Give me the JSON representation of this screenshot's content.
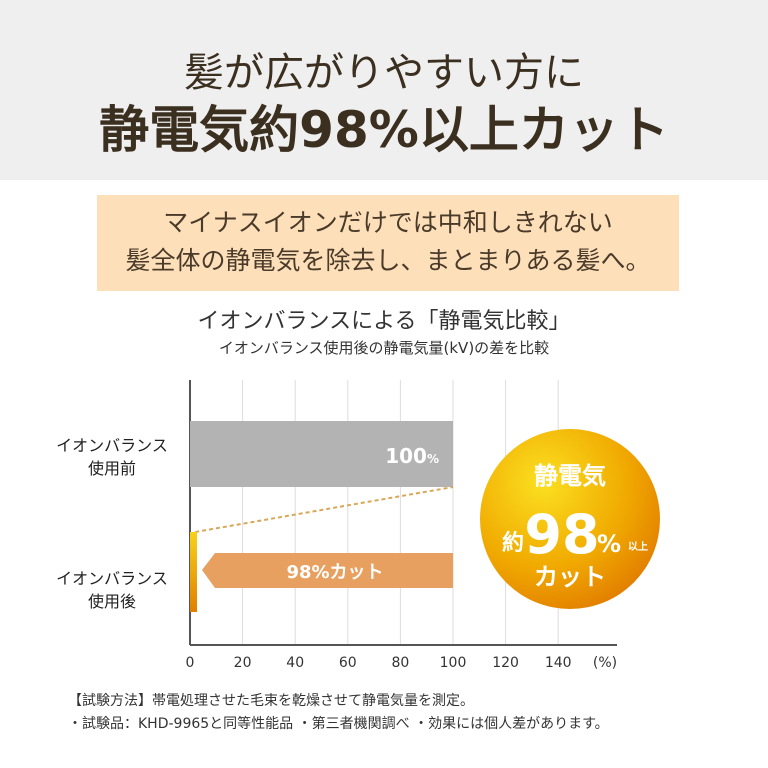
{
  "header": {
    "line1": "髪が広がりやすい方に",
    "line2": "静電気約98%以上カット"
  },
  "callout": {
    "line1": "マイナスイオンだけでは中和しきれない",
    "line2": "髪全体の静電気を除去し、まとまりある髪へ。"
  },
  "chart_data": {
    "type": "bar",
    "orientation": "horizontal",
    "title": "イオンバランスによる「静電気比較」",
    "subtitle": "イオンバランス使用後の静電気量(kV)の差を比較",
    "categories": [
      [
        "イオンバランス",
        "使用前"
      ],
      [
        "イオンバランス",
        "使用後"
      ]
    ],
    "values": [
      100,
      2
    ],
    "data_labels": [
      "100",
      "98%カット"
    ],
    "label_unit": "%",
    "xlim": [
      0,
      150
    ],
    "xticks": [
      0,
      20,
      40,
      60,
      80,
      100,
      120,
      140
    ],
    "xunit": "(%)",
    "grid": true,
    "colors": {
      "before": "#b3b3b3",
      "after": "#e8a060",
      "after_bar": "#e89a10",
      "badge": "#f0a800"
    },
    "badge": {
      "line1": "静電気",
      "prefix": "約",
      "number": "98",
      "pct": "%",
      "suffix": "以上",
      "line3": "カット"
    }
  },
  "footnotes": [
    "【試験方法】帯電処理させた毛束を乾燥させて静電気量を測定。",
    "・試験品：KHD-9965と同等性能品 ・第三者機関調べ ・効果には個人差があります。"
  ]
}
